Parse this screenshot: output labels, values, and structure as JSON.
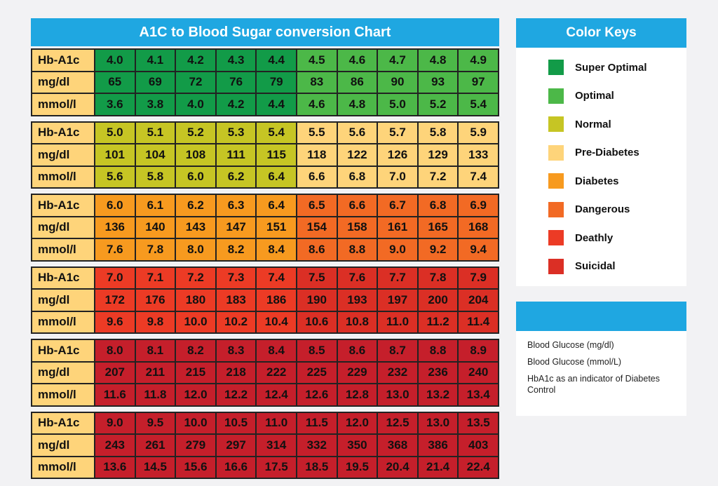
{
  "chart_data": {
    "type": "table",
    "title": "A1C to Blood Sugar conversion Chart",
    "row_labels": [
      "Hb-A1c",
      "mg/dl",
      "mmol/l"
    ],
    "blocks": [
      {
        "hba1c": [
          "4.0",
          "4.1",
          "4.2",
          "4.3",
          "4.4",
          "4.5",
          "4.6",
          "4.7",
          "4.8",
          "4.9"
        ],
        "mgdl": [
          "65",
          "69",
          "72",
          "76",
          "79",
          "83",
          "86",
          "90",
          "93",
          "97"
        ],
        "mmol": [
          "3.6",
          "3.8",
          "4.0",
          "4.2",
          "4.4",
          "4.6",
          "4.8",
          "5.0",
          "5.2",
          "5.4"
        ],
        "colors": [
          "#129b48",
          "#129b48",
          "#129b48",
          "#129b48",
          "#129b48",
          "#4cb848",
          "#4cb848",
          "#4cb848",
          "#4cb848",
          "#4cb848"
        ]
      },
      {
        "hba1c": [
          "5.0",
          "5.1",
          "5.2",
          "5.3",
          "5.4",
          "5.5",
          "5.6",
          "5.7",
          "5.8",
          "5.9"
        ],
        "mgdl": [
          "101",
          "104",
          "108",
          "111",
          "115",
          "118",
          "122",
          "126",
          "129",
          "133"
        ],
        "mmol": [
          "5.6",
          "5.8",
          "6.0",
          "6.2",
          "6.4",
          "6.6",
          "6.8",
          "7.0",
          "7.2",
          "7.4"
        ],
        "colors": [
          "#c6c524",
          "#c6c524",
          "#c6c524",
          "#c6c524",
          "#c6c524",
          "#fed47a",
          "#fed47a",
          "#fed47a",
          "#fed47a",
          "#fed47a"
        ]
      },
      {
        "hba1c": [
          "6.0",
          "6.1",
          "6.2",
          "6.3",
          "6.4",
          "6.5",
          "6.6",
          "6.7",
          "6.8",
          "6.9"
        ],
        "mgdl": [
          "136",
          "140",
          "143",
          "147",
          "151",
          "154",
          "158",
          "161",
          "165",
          "168"
        ],
        "mmol": [
          "7.6",
          "7.8",
          "8.0",
          "8.2",
          "8.4",
          "8.6",
          "8.8",
          "9.0",
          "9.2",
          "9.4"
        ],
        "colors": [
          "#f79a1f",
          "#f79a1f",
          "#f79a1f",
          "#f79a1f",
          "#f79a1f",
          "#f26a24",
          "#f26a24",
          "#f26a24",
          "#f26a24",
          "#f26a24"
        ]
      },
      {
        "hba1c": [
          "7.0",
          "7.1",
          "7.2",
          "7.3",
          "7.4",
          "7.5",
          "7.6",
          "7.7",
          "7.8",
          "7.9"
        ],
        "mgdl": [
          "172",
          "176",
          "180",
          "183",
          "186",
          "190",
          "193",
          "197",
          "200",
          "204"
        ],
        "mmol": [
          "9.6",
          "9.8",
          "10.0",
          "10.2",
          "10.4",
          "10.6",
          "10.8",
          "11.0",
          "11.2",
          "11.4"
        ],
        "colors": [
          "#ec3b25",
          "#ec3b25",
          "#ec3b25",
          "#ec3b25",
          "#ec3b25",
          "#db2f25",
          "#db2f25",
          "#db2f25",
          "#db2f25",
          "#db2f25"
        ]
      },
      {
        "hba1c": [
          "8.0",
          "8.1",
          "8.2",
          "8.3",
          "8.4",
          "8.5",
          "8.6",
          "8.7",
          "8.8",
          "8.9"
        ],
        "mgdl": [
          "207",
          "211",
          "215",
          "218",
          "222",
          "225",
          "229",
          "232",
          "236",
          "240"
        ],
        "mmol": [
          "11.6",
          "11.8",
          "12.0",
          "12.2",
          "12.4",
          "12.6",
          "12.8",
          "13.0",
          "13.2",
          "13.4"
        ],
        "colors": [
          "#c51f2b",
          "#c51f2b",
          "#c51f2b",
          "#c51f2b",
          "#c51f2b",
          "#c51f2b",
          "#c51f2b",
          "#c51f2b",
          "#c51f2b",
          "#c51f2b"
        ]
      },
      {
        "hba1c": [
          "9.0",
          "9.5",
          "10.0",
          "10.5",
          "11.0",
          "11.5",
          "12.0",
          "12.5",
          "13.0",
          "13.5"
        ],
        "mgdl": [
          "243",
          "261",
          "279",
          "297",
          "314",
          "332",
          "350",
          "368",
          "386",
          "403"
        ],
        "mmol": [
          "13.6",
          "14.5",
          "15.6",
          "16.6",
          "17.5",
          "18.5",
          "19.5",
          "20.4",
          "21.4",
          "22.4"
        ],
        "colors": [
          "#c51f2b",
          "#c51f2b",
          "#c51f2b",
          "#c51f2b",
          "#c51f2b",
          "#c51f2b",
          "#c51f2b",
          "#c51f2b",
          "#c51f2b",
          "#c51f2b"
        ]
      }
    ]
  },
  "color_keys": {
    "title": "Color Keys",
    "items": [
      {
        "label": "Super Optimal",
        "color": "#129b48"
      },
      {
        "label": "Optimal",
        "color": "#4cb848"
      },
      {
        "label": "Normal",
        "color": "#c6c524"
      },
      {
        "label": "Pre-Diabetes",
        "color": "#fed47a"
      },
      {
        "label": "Diabetes",
        "color": "#f79a1f"
      },
      {
        "label": "Dangerous",
        "color": "#f26a24"
      },
      {
        "label": "Deathly",
        "color": "#ec3b25"
      },
      {
        "label": "Suicidal",
        "color": "#db2f25"
      }
    ]
  },
  "notes": {
    "lines": [
      "Blood Glucose (mg/dl)",
      "Blood Glucose (mmol/L)",
      "HbA1c as an indicator of Diabetes Control"
    ]
  }
}
